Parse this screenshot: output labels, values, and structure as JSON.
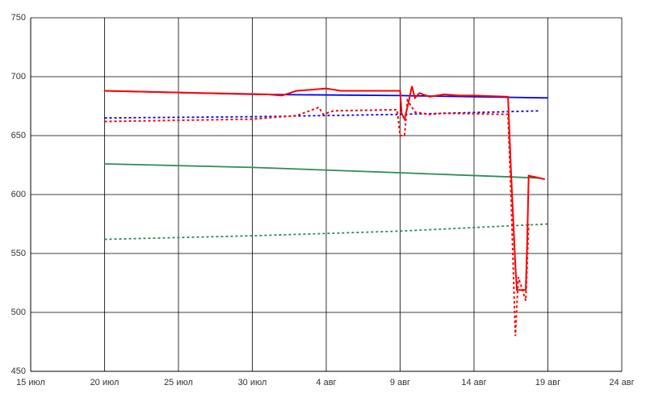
{
  "chart_data": {
    "type": "line",
    "xlim": [
      0,
      40
    ],
    "xticks": [
      {
        "value": 0,
        "label": "15 июл"
      },
      {
        "value": 5,
        "label": "20 июл"
      },
      {
        "value": 10,
        "label": "25 июл"
      },
      {
        "value": 15,
        "label": "30 июл"
      },
      {
        "value": 20,
        "label": "4 авг"
      },
      {
        "value": 25,
        "label": "9 авг"
      },
      {
        "value": 30,
        "label": "14 авг"
      },
      {
        "value": 35,
        "label": "19 авг"
      },
      {
        "value": 40,
        "label": "24 авг"
      }
    ],
    "ylim": [
      450,
      750
    ],
    "yticks": [
      450,
      500,
      550,
      600,
      650,
      700,
      750
    ],
    "grid": true,
    "series": [
      {
        "color": "#0000ff",
        "style": "solid",
        "x": [
          5,
          15,
          25,
          35
        ],
        "values": [
          688,
          685,
          684,
          682
        ]
      },
      {
        "color": "#0000ff",
        "style": "dotted",
        "x": [
          5,
          15,
          25,
          34.5
        ],
        "values": [
          665,
          666,
          668,
          671
        ]
      },
      {
        "color": "#2e8b57",
        "style": "solid",
        "x": [
          5,
          15,
          25,
          34.5
        ],
        "values": [
          626,
          623,
          618.5,
          614
        ]
      },
      {
        "color": "#2e8b57",
        "style": "dotted",
        "x": [
          5,
          15,
          25,
          35
        ],
        "values": [
          562,
          565,
          569,
          575
        ]
      },
      {
        "color": "#ff0000",
        "style": "solid",
        "x": [
          5,
          12,
          16,
          17,
          18,
          19,
          20,
          21,
          22,
          25,
          25.1,
          25.3,
          25.6,
          25.8,
          26,
          26.3,
          27,
          28,
          29,
          30,
          32.3,
          32.5,
          32.8,
          32.9,
          33.5,
          33.6,
          33.7,
          34.8
        ],
        "values": [
          688,
          686,
          685,
          684,
          688,
          689,
          690,
          688,
          688,
          688,
          669,
          664,
          680,
          692,
          682,
          686,
          683,
          685,
          684,
          684,
          683,
          620,
          540,
          519,
          519,
          560,
          616,
          613
        ]
      },
      {
        "color": "#ff0000",
        "style": "dotted",
        "x": [
          5,
          15,
          17,
          18,
          19.5,
          19.8,
          20.5,
          24.8,
          25,
          25.3,
          25.5,
          26,
          27,
          28,
          32.3,
          32.5,
          32.8,
          33,
          33.5,
          33.7
        ],
        "values": [
          662,
          664,
          666,
          667,
          674,
          668,
          671,
          672,
          650,
          650,
          680,
          670,
          668,
          669,
          668,
          600,
          480,
          530,
          510,
          575
        ]
      }
    ]
  }
}
